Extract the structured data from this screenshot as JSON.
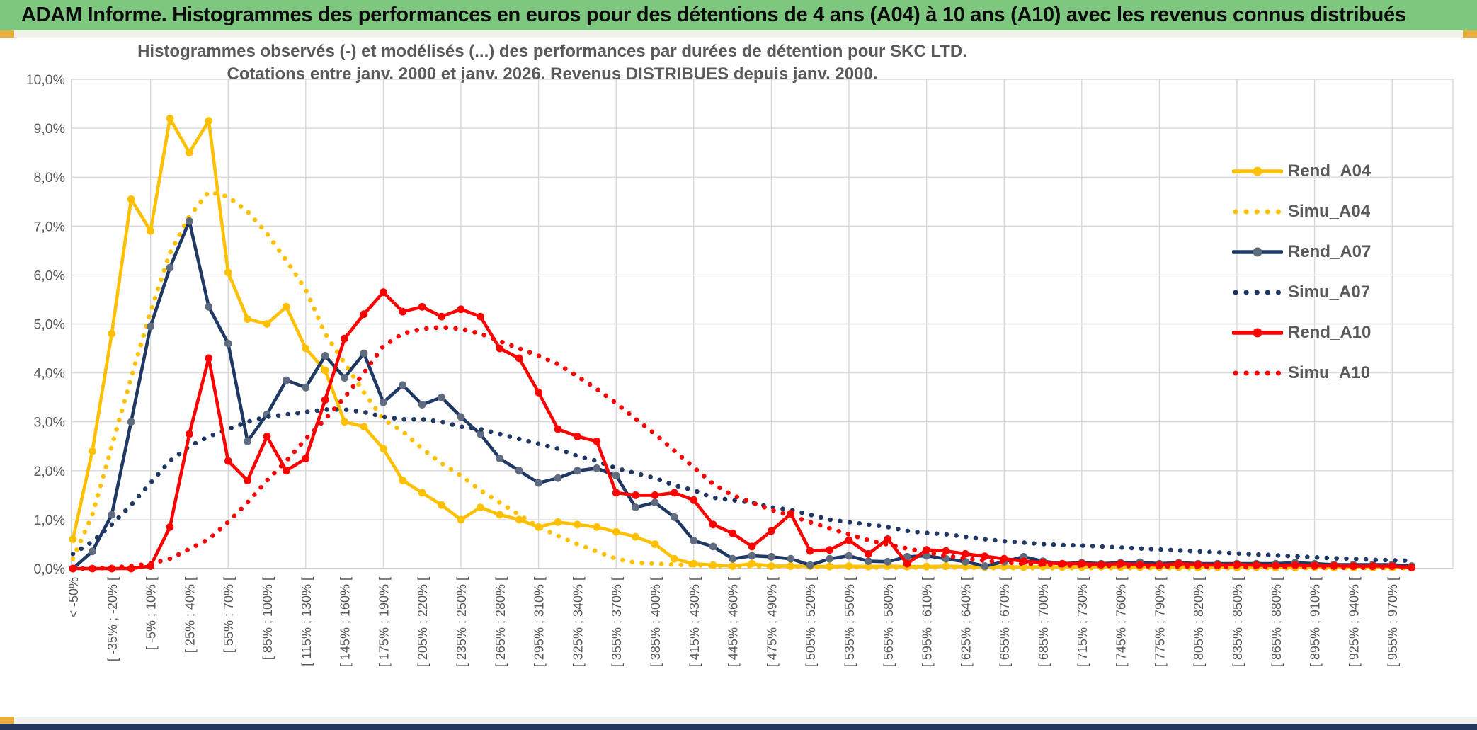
{
  "header": {
    "title": "ADAM Informe. Histogrammes des performances en euros pour des détentions de 4 ans (A04) à 10 ans (A10) avec les revenus connus distribués"
  },
  "frame": {
    "header_bg": "#7ec77e",
    "accent_gold": "#e9ae3c",
    "strip_bg": "#f2f1ec",
    "footer_navy": "#24385e",
    "grid_color": "#d9d9d9",
    "axis_color": "#bfbfbf",
    "text_gray": "#595959"
  },
  "chart_data": {
    "type": "line",
    "title_line1": "Histogrammes observés (-) et modélisés (...) des performances par durées de détention pour SKC LTD.",
    "title_line2": "Cotations entre janv. 2000 et janv. 2026.  Revenus DISTRIBUES depuis janv. 2000.",
    "xlabel": "",
    "ylabel": "",
    "ylim": [
      0,
      10
    ],
    "grid": true,
    "legend_position": "right",
    "y_ticks": [
      "0,0%",
      "1,0%",
      "2,0%",
      "3,0%",
      "4,0%",
      "5,0%",
      "6,0%",
      "7,0%",
      "8,0%",
      "9,0%",
      "10,0%"
    ],
    "n_bins": 70,
    "label_every": 2,
    "vertical_grid_every_bins": 4,
    "x_labels": [
      "< -50%",
      "[ -35% ; -20% [",
      "[ -5% ; 10% [",
      "[ 25% ; 40% [",
      "[ 55% ; 70% [",
      "[ 85% ; 100% [",
      "[ 115% ; 130% [",
      "[ 145% ; 160% [",
      "[ 175% ; 190% [",
      "[ 205% ; 220% [",
      "[ 235% ; 250% [",
      "[ 265% ; 280% [",
      "[ 295% ; 310% [",
      "[ 325% ; 340% [",
      "[ 355% ; 370% [",
      "[ 385% ; 400% [",
      "[ 415% ; 430% [",
      "[ 445% ; 460% [",
      "[ 475% ; 490% [",
      "[ 505% ; 520% [",
      "[ 535% ; 550% [",
      "[ 565% ; 580% [",
      "[ 595% ; 610% [",
      "[ 625% ; 640% [",
      "[ 655% ; 670% [",
      "[ 685% ; 700% [",
      "[ 715% ; 730% [",
      "[ 745% ; 760% [",
      "[ 775% ; 790% [",
      "[ 805% ; 820% [",
      "[ 835% ; 850% [",
      "[ 865% ; 880% [",
      "[ 895% ; 910% [",
      "[ 925% ; 940% [",
      "[ 955% ; 970% ["
    ],
    "series": [
      {
        "name": "Rend_A04",
        "style": "solid",
        "color": "#ffc000",
        "marker_color": "#ffc000",
        "values": [
          0.6,
          2.4,
          4.8,
          7.55,
          6.9,
          9.2,
          8.5,
          9.15,
          6.05,
          5.1,
          5.0,
          5.35,
          4.5,
          4.05,
          3.0,
          2.9,
          2.45,
          1.8,
          1.55,
          1.3,
          1.0,
          1.25,
          1.1,
          1.0,
          0.85,
          0.95,
          0.9,
          0.85,
          0.75,
          0.65,
          0.5,
          0.2,
          0.1,
          0.07,
          0.05,
          0.1,
          0.05,
          0.05,
          0.05,
          0.04,
          0.05,
          0.04,
          0.05,
          0.04,
          0.04,
          0.05,
          0.04,
          0.03,
          0.04,
          0.03,
          0.04,
          0.03,
          0.03,
          0.04,
          0.03,
          0.03,
          0.03,
          0.03,
          0.02,
          0.03,
          0.02,
          0.03,
          0.02,
          0.02,
          0.03,
          0.02,
          0.02,
          0.02,
          0.02,
          0.02
        ]
      },
      {
        "name": "Simu_A04",
        "style": "dotted",
        "color": "#ffc000",
        "marker_color": "#ffc000",
        "values": [
          0.2,
          1.1,
          2.5,
          3.9,
          5.25,
          6.45,
          7.2,
          7.7,
          7.6,
          7.3,
          6.85,
          6.3,
          5.7,
          4.8,
          4.2,
          3.6,
          3.05,
          2.8,
          2.45,
          2.15,
          1.9,
          1.6,
          1.35,
          1.1,
          0.85,
          0.67,
          0.5,
          0.35,
          0.2,
          0.12,
          0.1,
          0.08,
          0.07,
          0.06,
          0.05,
          0.05,
          0.04,
          0.04,
          0.03,
          0.03,
          0.03,
          0.02,
          0.02,
          0.02,
          0.02,
          0.02,
          0.02,
          0.01,
          0.01,
          0.01,
          0.01,
          0.01,
          0.01,
          0.01,
          0.01,
          0.01,
          0.01,
          0.01,
          0.01,
          0.01,
          0.01,
          0.01,
          0.01,
          0.01,
          0.01,
          0.01,
          0.01,
          0.01,
          0.01,
          0.01
        ]
      },
      {
        "name": "Rend_A07",
        "style": "solid",
        "color": "#1f3864",
        "marker_color": "#5f6b7f",
        "values": [
          0.0,
          0.35,
          1.1,
          3.0,
          4.95,
          6.15,
          7.1,
          5.35,
          4.6,
          2.6,
          3.15,
          3.85,
          3.7,
          4.35,
          3.9,
          4.4,
          3.4,
          3.75,
          3.35,
          3.5,
          3.1,
          2.75,
          2.25,
          2.0,
          1.75,
          1.85,
          2.0,
          2.05,
          1.9,
          1.25,
          1.35,
          1.05,
          0.57,
          0.45,
          0.2,
          0.26,
          0.24,
          0.2,
          0.07,
          0.2,
          0.26,
          0.15,
          0.14,
          0.24,
          0.26,
          0.2,
          0.14,
          0.05,
          0.14,
          0.24,
          0.15,
          0.1,
          0.12,
          0.1,
          0.12,
          0.13,
          0.1,
          0.12,
          0.1,
          0.1,
          0.1,
          0.1,
          0.1,
          0.12,
          0.1,
          0.08,
          0.08,
          0.08,
          0.08,
          0.05
        ]
      },
      {
        "name": "Simu_A07",
        "style": "dotted",
        "color": "#1f3864",
        "marker_color": "#1f3864",
        "values": [
          0.3,
          0.55,
          0.9,
          1.3,
          1.75,
          2.2,
          2.5,
          2.7,
          2.85,
          3.0,
          3.1,
          3.15,
          3.2,
          3.25,
          3.25,
          3.2,
          3.1,
          3.05,
          3.05,
          3.0,
          2.9,
          2.85,
          2.75,
          2.65,
          2.55,
          2.45,
          2.3,
          2.2,
          2.05,
          1.95,
          1.85,
          1.7,
          1.6,
          1.45,
          1.4,
          1.35,
          1.25,
          1.2,
          1.1,
          1.0,
          0.95,
          0.9,
          0.85,
          0.77,
          0.73,
          0.7,
          0.65,
          0.6,
          0.56,
          0.53,
          0.5,
          0.48,
          0.47,
          0.45,
          0.43,
          0.41,
          0.39,
          0.37,
          0.35,
          0.33,
          0.31,
          0.29,
          0.27,
          0.25,
          0.23,
          0.21,
          0.2,
          0.18,
          0.17,
          0.16
        ]
      },
      {
        "name": "Rend_A10",
        "style": "solid",
        "color": "#ff0000",
        "marker_color": "#ff0000",
        "values": [
          0.0,
          0.0,
          0.0,
          0.0,
          0.05,
          0.85,
          2.75,
          4.3,
          2.2,
          1.8,
          2.7,
          2.0,
          2.25,
          3.45,
          4.7,
          5.2,
          5.65,
          5.25,
          5.35,
          5.15,
          5.3,
          5.15,
          4.5,
          4.3,
          3.6,
          2.85,
          2.7,
          2.6,
          1.55,
          1.5,
          1.5,
          1.55,
          1.4,
          0.9,
          0.72,
          0.45,
          0.77,
          1.12,
          0.36,
          0.38,
          0.58,
          0.3,
          0.6,
          0.1,
          0.38,
          0.36,
          0.3,
          0.25,
          0.2,
          0.15,
          0.12,
          0.1,
          0.1,
          0.08,
          0.1,
          0.08,
          0.07,
          0.1,
          0.08,
          0.07,
          0.08,
          0.07,
          0.06,
          0.07,
          0.06,
          0.06,
          0.05,
          0.05,
          0.05,
          0.02
        ]
      },
      {
        "name": "Simu_A10",
        "style": "dotted",
        "color": "#ff0000",
        "marker_color": "#ff0000",
        "values": [
          0.0,
          0.0,
          0.02,
          0.05,
          0.1,
          0.2,
          0.4,
          0.6,
          0.95,
          1.35,
          1.8,
          2.2,
          2.65,
          3.05,
          3.5,
          4.0,
          4.55,
          4.8,
          4.9,
          4.93,
          4.9,
          4.8,
          4.65,
          4.5,
          4.35,
          4.18,
          3.93,
          3.67,
          3.38,
          3.06,
          2.75,
          2.41,
          2.07,
          1.73,
          1.5,
          1.35,
          1.2,
          1.08,
          0.95,
          0.82,
          0.7,
          0.58,
          0.49,
          0.41,
          0.33,
          0.26,
          0.21,
          0.16,
          0.13,
          0.1,
          0.08,
          0.07,
          0.06,
          0.06,
          0.05,
          0.05,
          0.04,
          0.04,
          0.04,
          0.03,
          0.03,
          0.03,
          0.03,
          0.03,
          0.02,
          0.02,
          0.02,
          0.02,
          0.02,
          0.02
        ]
      }
    ]
  }
}
